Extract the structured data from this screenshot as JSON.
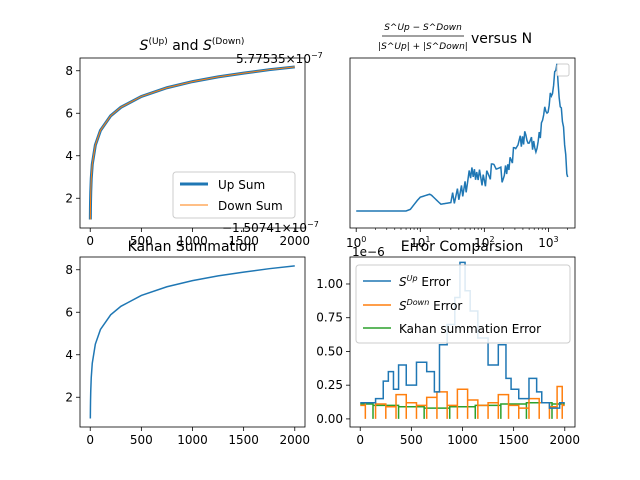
{
  "chart_data": [
    {
      "type": "line",
      "title_main": "S",
      "title_sup1": "(Up)",
      "title_and": " and ",
      "title_sup2": "(Down)",
      "xlim": [
        -100,
        2100
      ],
      "ylim": [
        0.6,
        8.6
      ],
      "xticks": [
        "0",
        "500",
        "1000",
        "1500",
        "2000"
      ],
      "xtick_values": [
        0,
        500,
        1000,
        1500,
        2000
      ],
      "yticks": [
        "2",
        "4",
        "6",
        "8"
      ],
      "ytick_values": [
        2,
        4,
        6,
        8
      ],
      "series": [
        {
          "name": "Up Sum",
          "color": "#1f77b4",
          "width": 3
        },
        {
          "name": "Down Sum",
          "color": "#ff7f0e",
          "width": 1
        }
      ],
      "x": [
        1,
        2,
        3,
        5,
        10,
        20,
        50,
        100,
        200,
        300,
        500,
        750,
        1000,
        1250,
        1500,
        1750,
        2000
      ],
      "y": [
        1.0,
        1.5,
        1.83,
        2.28,
        2.93,
        3.6,
        4.5,
        5.19,
        5.88,
        6.28,
        6.79,
        7.2,
        7.49,
        7.71,
        7.89,
        8.05,
        8.18
      ],
      "legend": "lower-right"
    },
    {
      "type": "line",
      "title_frac_num": "S^Up − S^Down",
      "title_frac_den": "|S^Up| + |S^Down|",
      "title_suffix": "versus N",
      "xscale": "log",
      "xticks": [
        "10",
        "10",
        "10",
        "10"
      ],
      "xtick_exps": [
        "0",
        "1",
        "2",
        "3"
      ],
      "xtick_values": [
        1,
        10,
        100,
        1000
      ],
      "offset_top": "5.77535×10",
      "offset_top_exp": "−7",
      "offset_bottom": "−1.50741×10",
      "offset_bottom_exp": "−7",
      "series_color": "#1f77b4",
      "level_values": [
        0.0,
        0.5,
        1.0,
        1.5,
        2.0,
        2.5,
        3.0,
        3.5,
        4.0,
        4.5,
        5.0,
        5.5,
        6.0,
        6.5,
        7.0,
        7.5,
        8.0,
        8.5,
        9.0,
        9.5,
        10.0
      ],
      "ylevels": [
        0.1,
        0.1,
        0.1,
        0.1,
        0.1,
        0.1,
        0.18,
        0.2,
        0.14,
        0.15,
        0.22,
        0.32,
        0.28,
        0.35,
        0.3,
        0.45,
        0.55,
        0.48,
        0.7,
        0.92,
        0.3
      ],
      "legend": "top-right-empty"
    },
    {
      "type": "line",
      "title": "Kahan Summation",
      "xlim": [
        -100,
        2100
      ],
      "ylim": [
        0.6,
        8.6
      ],
      "xticks": [
        "0",
        "500",
        "1000",
        "1500",
        "2000"
      ],
      "xtick_values": [
        0,
        500,
        1000,
        1500,
        2000
      ],
      "yticks": [
        "2",
        "4",
        "6",
        "8"
      ],
      "ytick_values": [
        2,
        4,
        6,
        8
      ],
      "series_color": "#1f77b4",
      "x": [
        1,
        2,
        3,
        5,
        10,
        20,
        50,
        100,
        200,
        300,
        500,
        750,
        1000,
        1250,
        1500,
        1750,
        2000
      ],
      "y": [
        1.0,
        1.5,
        1.83,
        2.28,
        2.93,
        3.6,
        4.5,
        5.19,
        5.88,
        6.28,
        6.79,
        7.2,
        7.49,
        7.71,
        7.89,
        8.05,
        8.18
      ]
    },
    {
      "type": "line",
      "title": "Error Comparsion",
      "scale_note": "1e−6",
      "xlim": [
        -100,
        2100
      ],
      "ylim": [
        -0.06,
        1.2
      ],
      "xticks": [
        "0",
        "500",
        "1000",
        "1500",
        "2000"
      ],
      "xtick_values": [
        0,
        500,
        1000,
        1500,
        2000
      ],
      "yticks": [
        "0.00",
        "0.25",
        "0.50",
        "0.75",
        "1.00"
      ],
      "ytick_values": [
        0,
        0.25,
        0.5,
        0.75,
        1.0
      ],
      "series": [
        {
          "label_main": "S",
          "label_sup": "Up",
          "label_rest": " Error",
          "color": "#1f77b4",
          "x": [
            0,
            100,
            200,
            250,
            300,
            350,
            400,
            500,
            600,
            700,
            750,
            800,
            900,
            950,
            1000,
            1050,
            1100,
            1200,
            1300,
            1400,
            1450,
            1500,
            1600,
            1700,
            1750,
            1800,
            1900,
            2000
          ],
          "y": [
            0.12,
            0.12,
            0.15,
            0.28,
            0.35,
            0.22,
            0.4,
            0.25,
            0.42,
            0.35,
            0.2,
            0.55,
            0.7,
            0.9,
            1.16,
            0.95,
            0.8,
            0.6,
            0.4,
            0.55,
            0.3,
            0.22,
            0.15,
            0.3,
            0.2,
            0.12,
            0.08,
            0.12
          ]
        },
        {
          "label_main": "S",
          "label_sup": "Down",
          "label_rest": " Error",
          "color": "#ff7f0e",
          "x": [
            0,
            100,
            200,
            300,
            400,
            500,
            600,
            700,
            800,
            900,
            1000,
            1100,
            1200,
            1300,
            1400,
            1500,
            1600,
            1700,
            1800,
            1900,
            1950,
            2000
          ],
          "y": [
            0.1,
            0.12,
            0.11,
            0.09,
            0.18,
            0.12,
            0.1,
            0.16,
            0.2,
            0.1,
            0.22,
            0.14,
            0.1,
            0.12,
            0.18,
            0.1,
            0.08,
            0.15,
            0.12,
            0.09,
            0.24,
            0.1
          ]
        },
        {
          "label": "Kahan summation Error",
          "color": "#2ca02c",
          "x": [
            0,
            250,
            500,
            750,
            1000,
            1250,
            1500,
            1750,
            2000
          ],
          "y": [
            0.11,
            0.1,
            0.09,
            0.08,
            0.09,
            0.1,
            0.11,
            0.12,
            0.11
          ]
        }
      ],
      "legend": "upper-left"
    }
  ]
}
